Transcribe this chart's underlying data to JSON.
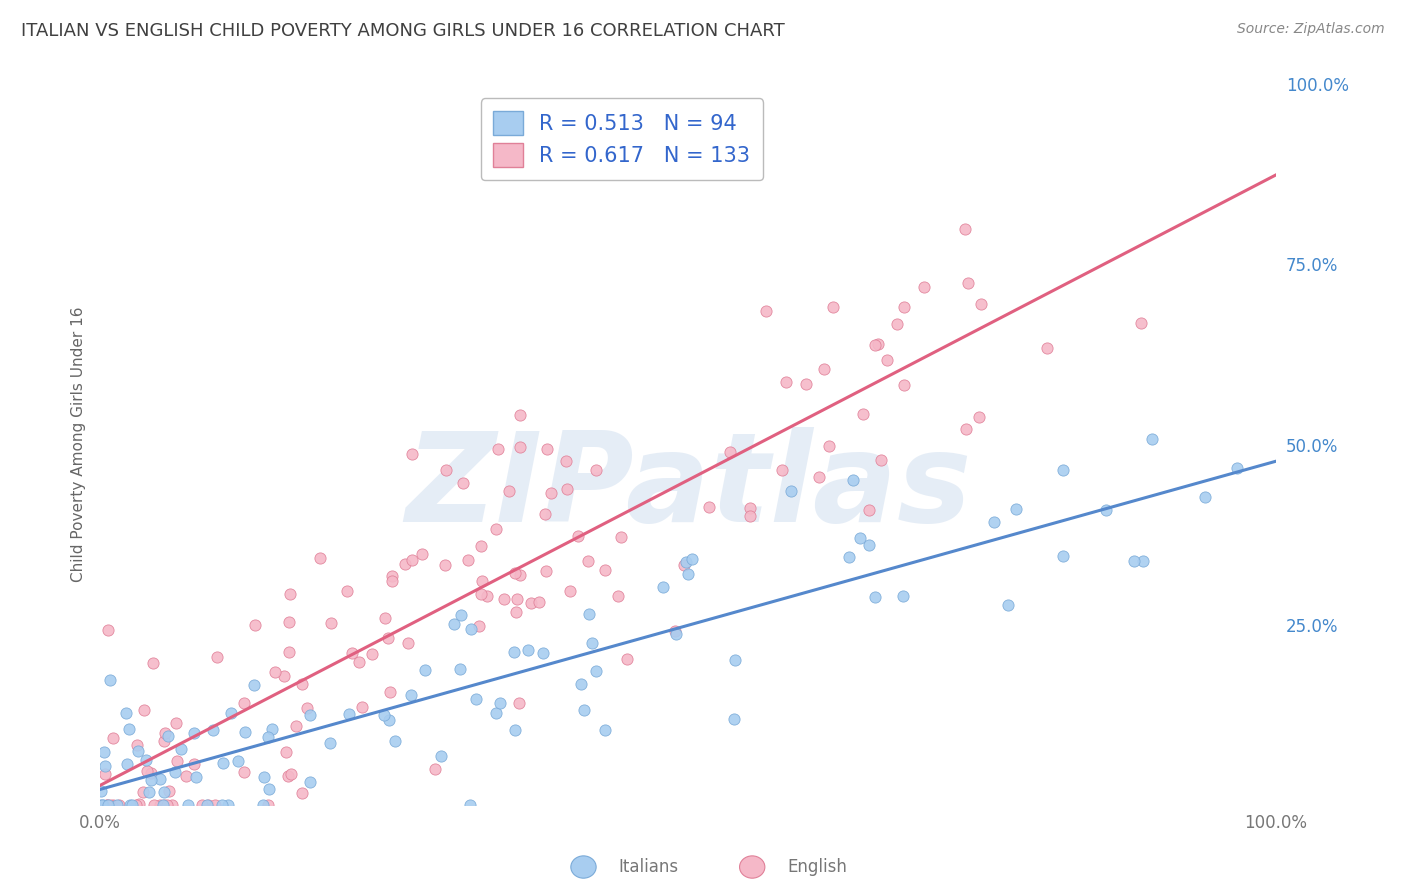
{
  "title": "ITALIAN VS ENGLISH CHILD POVERTY AMONG GIRLS UNDER 16 CORRELATION CHART",
  "source": "Source: ZipAtlas.com",
  "ylabel": "Child Poverty Among Girls Under 16",
  "watermark": "ZIPatlas",
  "italians_R": 0.513,
  "italians_N": 94,
  "english_R": 0.617,
  "english_N": 133,
  "blue_scatter_color": "#a8cdf0",
  "blue_scatter_edge": "#7aaad8",
  "pink_scatter_color": "#f5b8c8",
  "pink_scatter_edge": "#e08098",
  "blue_line_color": "#5588cc",
  "pink_line_color": "#e06080",
  "legend_color": "#3366cc",
  "title_color": "#404040",
  "source_color": "#888888",
  "background_color": "#ffffff",
  "grid_color": "#d8d8d8",
  "right_tick_color": "#4488cc",
  "bottom_tick_color": "#777777",
  "ylabel_color": "#666666",
  "right_ytick_labels": [
    "100.0%",
    "75.0%",
    "50.0%",
    "25.0%"
  ],
  "right_ytick_values": [
    1.0,
    0.75,
    0.5,
    0.25
  ],
  "xlim": [
    0.0,
    1.0
  ],
  "ylim": [
    0.0,
    1.0
  ],
  "seed": 7,
  "legend_fontsize": 15,
  "title_fontsize": 13,
  "axis_label_fontsize": 11,
  "blue_line_end_y": 0.5,
  "pink_line_end_y": 0.85
}
